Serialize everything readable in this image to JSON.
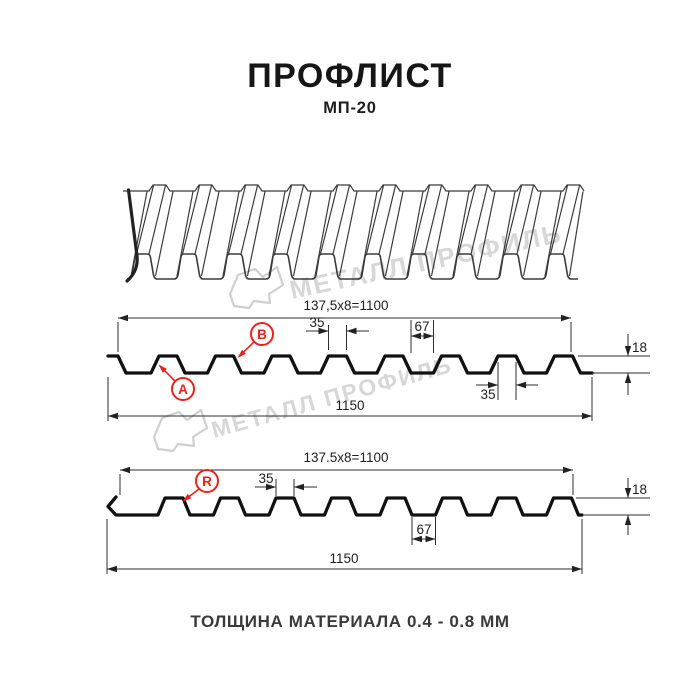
{
  "page": {
    "title": "ПРОФЛИСТ",
    "subtitle": "МП-20",
    "note": "ТОЛЩИНА МАТЕРИАЛА 0.4 - 0.8 ММ"
  },
  "watermark": {
    "brand": "МЕТАЛЛ ПРОФИЛЬ"
  },
  "colors": {
    "accent_red": "#e8231e",
    "drawing_line": "#111111",
    "watermark_gray": "#d7d7d7"
  },
  "section1": {
    "pitch_dim": "137,5x8=1100",
    "crest_width_top": "35",
    "valley_width": "67",
    "height": "18",
    "crest_width_bottom": "35",
    "total_width": "1150",
    "label_a": "A",
    "label_b": "B"
  },
  "section2": {
    "pitch_dim": "137.5x8=1100",
    "crest_width": "35",
    "valley_width": "67",
    "height": "18",
    "total_width": "1150",
    "label_r": "R"
  }
}
